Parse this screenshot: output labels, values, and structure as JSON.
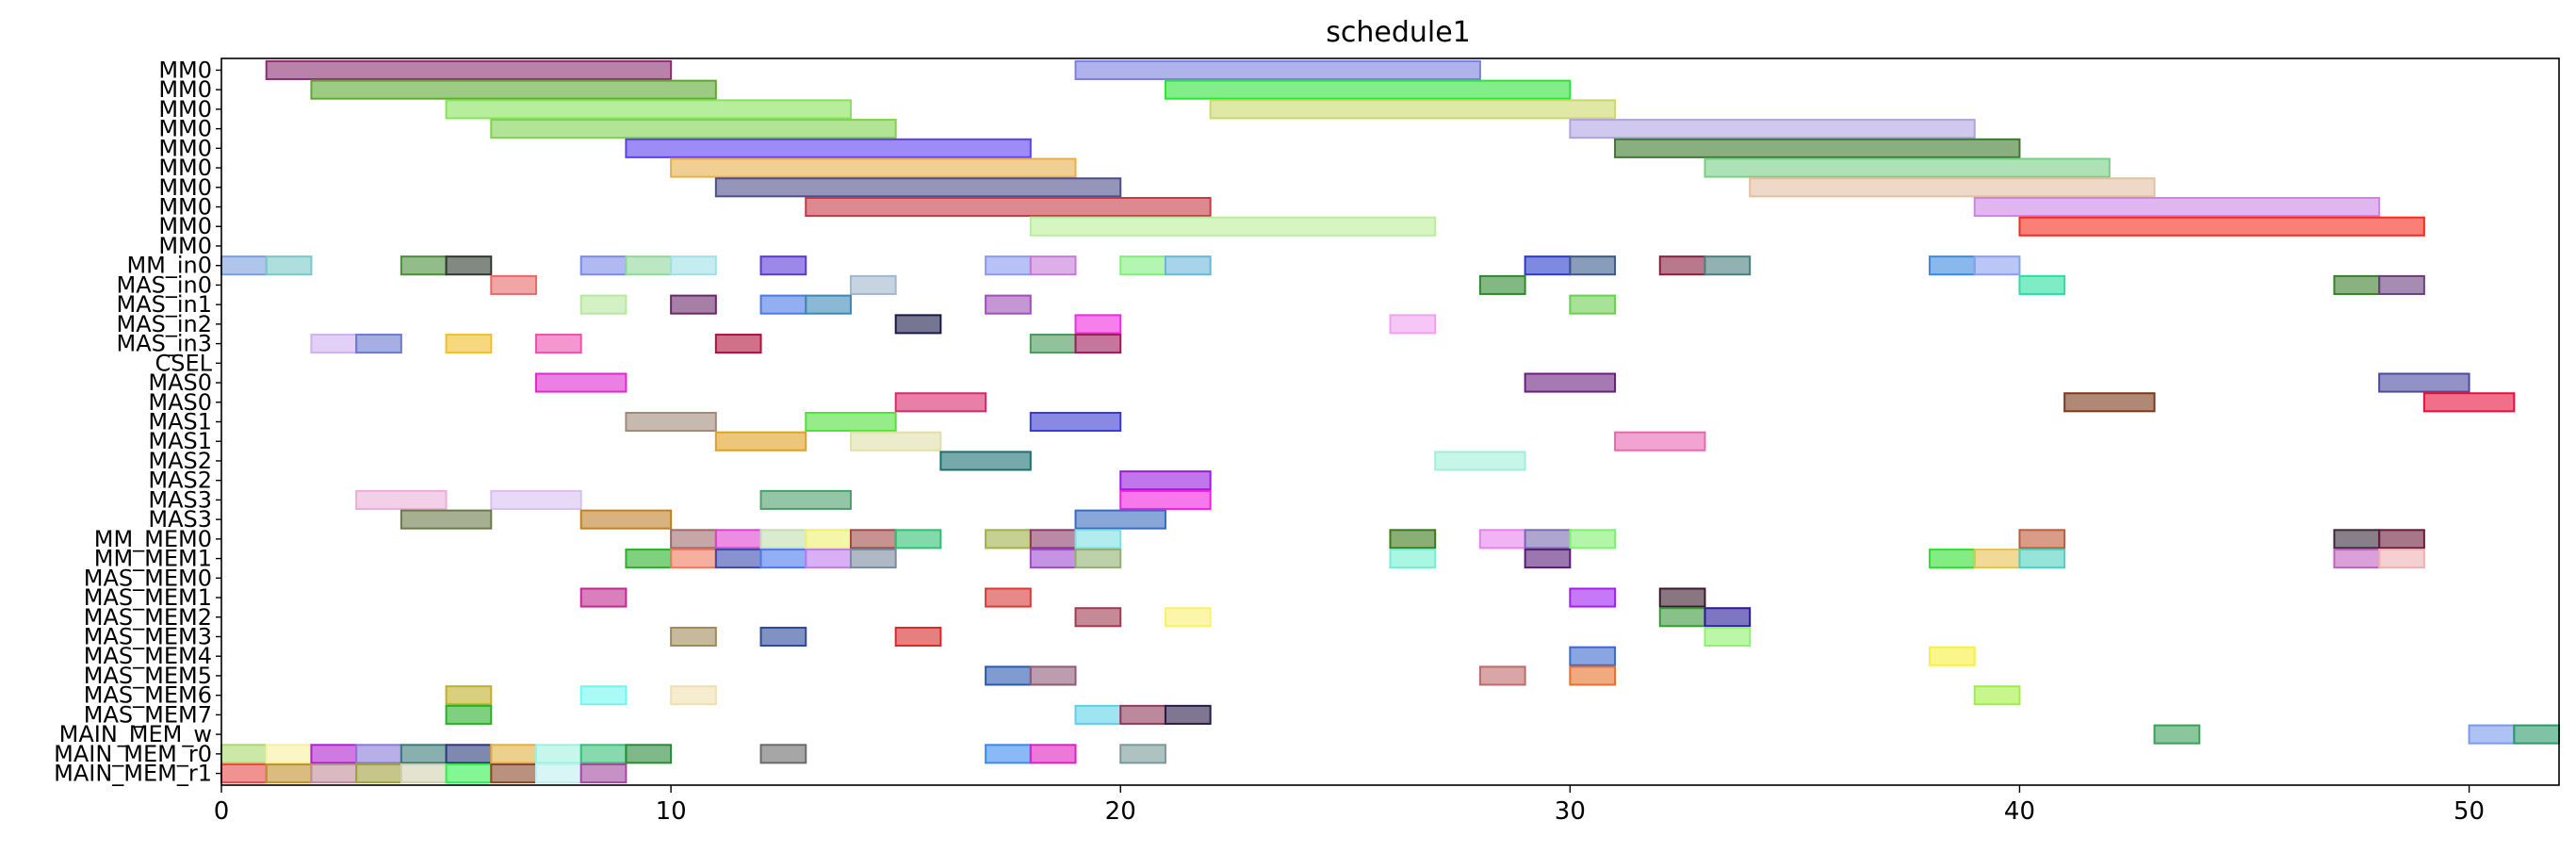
{
  "chart_data": {
    "type": "gantt",
    "title": "schedule1",
    "xlim": [
      0,
      52
    ],
    "x_ticks": [
      0,
      10,
      20,
      30,
      40,
      50
    ],
    "rows": [
      "MM0",
      "MM0",
      "MM0",
      "MM0",
      "MM0",
      "MM0",
      "MM0",
      "MM0",
      "MM0",
      "MM0",
      "MM_in0",
      "MAS_in0",
      "MAS_in1",
      "MAS_in2",
      "MAS_in3",
      "CSEL",
      "MAS0",
      "MAS0",
      "MAS1",
      "MAS1",
      "MAS2",
      "MAS2",
      "MAS3",
      "MAS3",
      "MM_MEM0",
      "MM_MEM1",
      "MAS_MEM0",
      "MAS_MEM1",
      "MAS_MEM2",
      "MAS_MEM3",
      "MAS_MEM4",
      "MAS_MEM5",
      "MAS_MEM6",
      "MAS_MEM7",
      "MAIN_MEM_w",
      "MAIN_MEM_r0",
      "MAIN_MEM_r1"
    ],
    "bars": [
      {
        "row": 0,
        "start": 1,
        "end": 10,
        "color": "#8b2f73"
      },
      {
        "row": 0,
        "start": 19,
        "end": 28,
        "color": "#7b7fe0"
      },
      {
        "row": 1,
        "start": 2,
        "end": 11,
        "color": "#5ea832"
      },
      {
        "row": 1,
        "start": 21,
        "end": 30,
        "color": "#2de33a"
      },
      {
        "row": 2,
        "start": 5,
        "end": 14,
        "color": "#86e35a"
      },
      {
        "row": 2,
        "start": 22,
        "end": 31,
        "color": "#ccd96a"
      },
      {
        "row": 3,
        "start": 6,
        "end": 15,
        "color": "#7fd24f"
      },
      {
        "row": 3,
        "start": 30,
        "end": 39,
        "color": "#b0a3e3"
      },
      {
        "row": 4,
        "start": 9,
        "end": 18,
        "color": "#5b3ff0"
      },
      {
        "row": 4,
        "start": 31,
        "end": 40,
        "color": "#3b7a2d"
      },
      {
        "row": 5,
        "start": 10,
        "end": 19,
        "color": "#e6b04a"
      },
      {
        "row": 5,
        "start": 33,
        "end": 42,
        "color": "#78cf85"
      },
      {
        "row": 6,
        "start": 11,
        "end": 20,
        "color": "#4c4f88"
      },
      {
        "row": 6,
        "start": 34,
        "end": 43,
        "color": "#e3c0a3"
      },
      {
        "row": 7,
        "start": 13,
        "end": 22,
        "color": "#c43a46"
      },
      {
        "row": 7,
        "start": 39,
        "end": 48,
        "color": "#cd85e3"
      },
      {
        "row": 8,
        "start": 18,
        "end": 27,
        "color": "#b9ef98"
      },
      {
        "row": 8,
        "start": 40,
        "end": 49,
        "color": "#f72a1c"
      },
      {
        "row": 10,
        "start": 0,
        "end": 1,
        "color": "#7a9ee0"
      },
      {
        "row": 10,
        "start": 1,
        "end": 2,
        "color": "#7ac8c8"
      },
      {
        "row": 10,
        "start": 4,
        "end": 5,
        "color": "#4a8f3a"
      },
      {
        "row": 10,
        "start": 5,
        "end": 6,
        "color": "#2f3a2f"
      },
      {
        "row": 10,
        "start": 8,
        "end": 9,
        "color": "#7c8be8"
      },
      {
        "row": 10,
        "start": 9,
        "end": 10,
        "color": "#90d79a"
      },
      {
        "row": 10,
        "start": 10,
        "end": 11,
        "color": "#9fe0e8"
      },
      {
        "row": 10,
        "start": 12,
        "end": 13,
        "color": "#5a38d8"
      },
      {
        "row": 10,
        "start": 17,
        "end": 18,
        "color": "#8a9af0"
      },
      {
        "row": 10,
        "start": 18,
        "end": 19,
        "color": "#c67ad8"
      },
      {
        "row": 10,
        "start": 20,
        "end": 21,
        "color": "#80f07a"
      },
      {
        "row": 10,
        "start": 21,
        "end": 22,
        "color": "#6ab8d8"
      },
      {
        "row": 10,
        "start": 29,
        "end": 30,
        "color": "#2a3acf"
      },
      {
        "row": 10,
        "start": 30,
        "end": 31,
        "color": "#3a5a8a"
      },
      {
        "row": 10,
        "start": 32,
        "end": 33,
        "color": "#8a1f3f"
      },
      {
        "row": 10,
        "start": 33,
        "end": 34,
        "color": "#4a7f7f"
      },
      {
        "row": 10,
        "start": 38,
        "end": 39,
        "color": "#3a8adf"
      },
      {
        "row": 10,
        "start": 39,
        "end": 40,
        "color": "#8aa0f0"
      },
      {
        "row": 11,
        "start": 6,
        "end": 7,
        "color": "#e86a6a"
      },
      {
        "row": 11,
        "start": 14,
        "end": 15,
        "color": "#a0b8cf"
      },
      {
        "row": 11,
        "start": 28,
        "end": 29,
        "color": "#2f8a2f"
      },
      {
        "row": 11,
        "start": 40,
        "end": 41,
        "color": "#2ae0a0"
      },
      {
        "row": 11,
        "start": 47,
        "end": 48,
        "color": "#3a7f2a"
      },
      {
        "row": 11,
        "start": 48,
        "end": 49,
        "color": "#6a3f7f"
      },
      {
        "row": 12,
        "start": 8,
        "end": 9,
        "color": "#b8e8a0"
      },
      {
        "row": 12,
        "start": 10,
        "end": 11,
        "color": "#6a2a6a"
      },
      {
        "row": 12,
        "start": 12,
        "end": 13,
        "color": "#4a7ae8"
      },
      {
        "row": 12,
        "start": 13,
        "end": 14,
        "color": "#3a8ab8"
      },
      {
        "row": 12,
        "start": 17,
        "end": 18,
        "color": "#a050b8"
      },
      {
        "row": 12,
        "start": 30,
        "end": 31,
        "color": "#6ad050"
      },
      {
        "row": 13,
        "start": 15,
        "end": 16,
        "color": "#1a1a4a"
      },
      {
        "row": 13,
        "start": 19,
        "end": 20,
        "color": "#f02ae0"
      },
      {
        "row": 13,
        "start": 26,
        "end": 27,
        "color": "#f0a0f0"
      },
      {
        "row": 14,
        "start": 2,
        "end": 3,
        "color": "#d0b0f0"
      },
      {
        "row": 14,
        "start": 3,
        "end": 4,
        "color": "#6a7ad0"
      },
      {
        "row": 14,
        "start": 5,
        "end": 6,
        "color": "#f0c02a"
      },
      {
        "row": 14,
        "start": 7,
        "end": 8,
        "color": "#f050b0"
      },
      {
        "row": 14,
        "start": 11,
        "end": 12,
        "color": "#b0103a"
      },
      {
        "row": 14,
        "start": 18,
        "end": 19,
        "color": "#4a9a5a"
      },
      {
        "row": 14,
        "start": 19,
        "end": 20,
        "color": "#a01a5a"
      },
      {
        "row": 16,
        "start": 7,
        "end": 9,
        "color": "#e02ad0"
      },
      {
        "row": 16,
        "start": 29,
        "end": 31,
        "color": "#6a1f7f"
      },
      {
        "row": 16,
        "start": 48,
        "end": 50,
        "color": "#4a4aa0"
      },
      {
        "row": 17,
        "start": 15,
        "end": 17,
        "color": "#d82a6a"
      },
      {
        "row": 17,
        "start": 41,
        "end": 43,
        "color": "#7a3a1a"
      },
      {
        "row": 17,
        "start": 49,
        "end": 51,
        "color": "#e8103a"
      },
      {
        "row": 18,
        "start": 9,
        "end": 11,
        "color": "#a08a7a"
      },
      {
        "row": 18,
        "start": 13,
        "end": 15,
        "color": "#50e03a"
      },
      {
        "row": 18,
        "start": 18,
        "end": 20,
        "color": "#3a3ad0"
      },
      {
        "row": 19,
        "start": 11,
        "end": 13,
        "color": "#e0a020"
      },
      {
        "row": 19,
        "start": 14,
        "end": 16,
        "color": "#e0e0a8"
      },
      {
        "row": 19,
        "start": 31,
        "end": 33,
        "color": "#e868b0"
      },
      {
        "row": 20,
        "start": 16,
        "end": 18,
        "color": "#1a6f6f"
      },
      {
        "row": 20,
        "start": 27,
        "end": 29,
        "color": "#a0f0d8"
      },
      {
        "row": 21,
        "start": 20,
        "end": 22,
        "color": "#9a1ae0"
      },
      {
        "row": 22,
        "start": 3,
        "end": 5,
        "color": "#e8b0d8"
      },
      {
        "row": 22,
        "start": 6,
        "end": 8,
        "color": "#d8c0f0"
      },
      {
        "row": 22,
        "start": 12,
        "end": 14,
        "color": "#4aa06a"
      },
      {
        "row": 22,
        "start": 20,
        "end": 22,
        "color": "#f020e0"
      },
      {
        "row": 23,
        "start": 4,
        "end": 6,
        "color": "#6a7a4a"
      },
      {
        "row": 23,
        "start": 8,
        "end": 10,
        "color": "#c0802a"
      },
      {
        "row": 23,
        "start": 19,
        "end": 21,
        "color": "#3a6ac0"
      },
      {
        "row": 24,
        "start": 10,
        "end": 11,
        "color": "#a06a6a"
      },
      {
        "row": 24,
        "start": 11,
        "end": 12,
        "color": "#e040d0"
      },
      {
        "row": 24,
        "start": 12,
        "end": 13,
        "color": "#c0e0b0"
      },
      {
        "row": 24,
        "start": 13,
        "end": 14,
        "color": "#f0f070"
      },
      {
        "row": 24,
        "start": 14,
        "end": 15,
        "color": "#a04a4a"
      },
      {
        "row": 24,
        "start": 15,
        "end": 16,
        "color": "#30c070"
      },
      {
        "row": 24,
        "start": 17,
        "end": 18,
        "color": "#a0b04a"
      },
      {
        "row": 24,
        "start": 18,
        "end": 19,
        "color": "#8a3a6a"
      },
      {
        "row": 24,
        "start": 19,
        "end": 20,
        "color": "#80e0e0"
      },
      {
        "row": 24,
        "start": 26,
        "end": 27,
        "color": "#3a7a1a"
      },
      {
        "row": 24,
        "start": 28,
        "end": 29,
        "color": "#e880f0"
      },
      {
        "row": 24,
        "start": 29,
        "end": 30,
        "color": "#7a6ab0"
      },
      {
        "row": 24,
        "start": 30,
        "end": 31,
        "color": "#80f070"
      },
      {
        "row": 24,
        "start": 40,
        "end": 41,
        "color": "#c05a3a"
      },
      {
        "row": 24,
        "start": 47,
        "end": 48,
        "color": "#3a2a3a"
      },
      {
        "row": 24,
        "start": 48,
        "end": 49,
        "color": "#6a1a3a"
      },
      {
        "row": 25,
        "start": 9,
        "end": 10,
        "color": "#2ab02a"
      },
      {
        "row": 25,
        "start": 10,
        "end": 11,
        "color": "#f07a5a"
      },
      {
        "row": 25,
        "start": 11,
        "end": 12,
        "color": "#3a4ab0"
      },
      {
        "row": 25,
        "start": 12,
        "end": 13,
        "color": "#4a7af0"
      },
      {
        "row": 25,
        "start": 13,
        "end": 14,
        "color": "#c07af0"
      },
      {
        "row": 25,
        "start": 14,
        "end": 15,
        "color": "#7a8aa0"
      },
      {
        "row": 25,
        "start": 18,
        "end": 19,
        "color": "#a04ad0"
      },
      {
        "row": 25,
        "start": 19,
        "end": 20,
        "color": "#90b070"
      },
      {
        "row": 25,
        "start": 26,
        "end": 27,
        "color": "#70f0d0"
      },
      {
        "row": 25,
        "start": 29,
        "end": 30,
        "color": "#5a1a7a"
      },
      {
        "row": 25,
        "start": 38,
        "end": 39,
        "color": "#30e030"
      },
      {
        "row": 25,
        "start": 39,
        "end": 40,
        "color": "#e8c050"
      },
      {
        "row": 25,
        "start": 40,
        "end": 41,
        "color": "#50d0c0"
      },
      {
        "row": 25,
        "start": 47,
        "end": 48,
        "color": "#c060c0"
      },
      {
        "row": 25,
        "start": 48,
        "end": 49,
        "color": "#f0b0b0"
      },
      {
        "row": 27,
        "start": 8,
        "end": 9,
        "color": "#c02a90"
      },
      {
        "row": 27,
        "start": 17,
        "end": 18,
        "color": "#d83a3a"
      },
      {
        "row": 27,
        "start": 30,
        "end": 31,
        "color": "#a020f0"
      },
      {
        "row": 27,
        "start": 32,
        "end": 33,
        "color": "#3a1a2a"
      },
      {
        "row": 28,
        "start": 19,
        "end": 20,
        "color": "#a03a50"
      },
      {
        "row": 28,
        "start": 21,
        "end": 22,
        "color": "#f8f070"
      },
      {
        "row": 28,
        "start": 32,
        "end": 33,
        "color": "#3a9a3a"
      },
      {
        "row": 28,
        "start": 33,
        "end": 34,
        "color": "#2a1a9a"
      },
      {
        "row": 29,
        "start": 10,
        "end": 11,
        "color": "#a08a5a"
      },
      {
        "row": 29,
        "start": 12,
        "end": 13,
        "color": "#2a4a9a"
      },
      {
        "row": 29,
        "start": 15,
        "end": 16,
        "color": "#d82a2a"
      },
      {
        "row": 29,
        "start": 33,
        "end": 34,
        "color": "#90f070"
      },
      {
        "row": 30,
        "start": 30,
        "end": 31,
        "color": "#3a6ad0"
      },
      {
        "row": 30,
        "start": 38,
        "end": 39,
        "color": "#f8f040"
      },
      {
        "row": 31,
        "start": 17,
        "end": 18,
        "color": "#2a5ab0"
      },
      {
        "row": 31,
        "start": 18,
        "end": 19,
        "color": "#905a7a"
      },
      {
        "row": 31,
        "start": 28,
        "end": 29,
        "color": "#c06a6a"
      },
      {
        "row": 31,
        "start": 30,
        "end": 31,
        "color": "#e8702a"
      },
      {
        "row": 32,
        "start": 5,
        "end": 6,
        "color": "#c0b02a"
      },
      {
        "row": 32,
        "start": 8,
        "end": 9,
        "color": "#70f8f0"
      },
      {
        "row": 32,
        "start": 10,
        "end": 11,
        "color": "#f0e0b0"
      },
      {
        "row": 32,
        "start": 39,
        "end": 40,
        "color": "#a0f040"
      },
      {
        "row": 33,
        "start": 5,
        "end": 6,
        "color": "#2ab02a"
      },
      {
        "row": 33,
        "start": 19,
        "end": 20,
        "color": "#60d0e8"
      },
      {
        "row": 33,
        "start": 20,
        "end": 21,
        "color": "#903a5a"
      },
      {
        "row": 33,
        "start": 21,
        "end": 22,
        "color": "#2a1a4a"
      },
      {
        "row": 34,
        "start": 43,
        "end": 44,
        "color": "#3aa05a"
      },
      {
        "row": 34,
        "start": 50,
        "end": 51,
        "color": "#7a9af0"
      },
      {
        "row": 34,
        "start": 51,
        "end": 52,
        "color": "#2a9a6a"
      },
      {
        "row": 35,
        "start": 0,
        "end": 1,
        "color": "#a8d870"
      },
      {
        "row": 35,
        "start": 1,
        "end": 2,
        "color": "#f8f0a0"
      },
      {
        "row": 35,
        "start": 2,
        "end": 3,
        "color": "#b020d0"
      },
      {
        "row": 35,
        "start": 3,
        "end": 4,
        "color": "#8a7ad8"
      },
      {
        "row": 35,
        "start": 4,
        "end": 5,
        "color": "#3a7a7a"
      },
      {
        "row": 35,
        "start": 5,
        "end": 6,
        "color": "#2a3a7a"
      },
      {
        "row": 35,
        "start": 6,
        "end": 7,
        "color": "#e0b040"
      },
      {
        "row": 35,
        "start": 7,
        "end": 8,
        "color": "#a0f0e0"
      },
      {
        "row": 35,
        "start": 8,
        "end": 9,
        "color": "#3ac07a"
      },
      {
        "row": 35,
        "start": 9,
        "end": 10,
        "color": "#2a8a3a"
      },
      {
        "row": 35,
        "start": 12,
        "end": 13,
        "color": "#6a6a6a"
      },
      {
        "row": 35,
        "start": 17,
        "end": 18,
        "color": "#3a8af0"
      },
      {
        "row": 35,
        "start": 18,
        "end": 19,
        "color": "#e020c0"
      },
      {
        "row": 35,
        "start": 20,
        "end": 21,
        "color": "#7a9a9a"
      },
      {
        "row": 36,
        "start": 0,
        "end": 1,
        "color": "#e84a4a"
      },
      {
        "row": 36,
        "start": 1,
        "end": 2,
        "color": "#c0902a"
      },
      {
        "row": 36,
        "start": 2,
        "end": 3,
        "color": "#c08a9a"
      },
      {
        "row": 36,
        "start": 3,
        "end": 4,
        "color": "#a0a040"
      },
      {
        "row": 36,
        "start": 4,
        "end": 5,
        "color": "#d0d0b0"
      },
      {
        "row": 36,
        "start": 5,
        "end": 6,
        "color": "#30f050"
      },
      {
        "row": 36,
        "start": 6,
        "end": 7,
        "color": "#8a4a2a"
      },
      {
        "row": 36,
        "start": 7,
        "end": 8,
        "color": "#c0f0f0"
      },
      {
        "row": 36,
        "start": 8,
        "end": 9,
        "color": "#a04aa0"
      }
    ]
  }
}
